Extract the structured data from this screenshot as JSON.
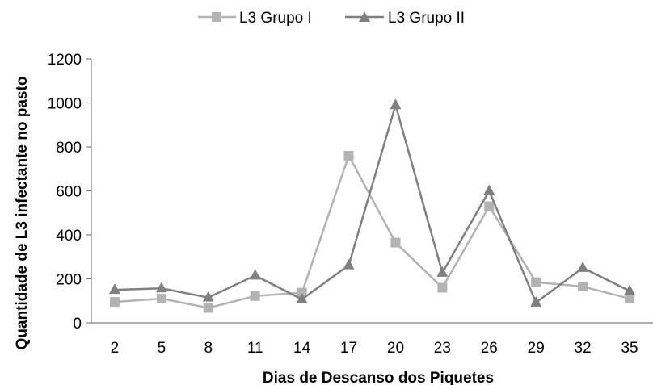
{
  "chart_data": {
    "type": "line",
    "title": "",
    "xlabel": "Dias de Descanso dos Piquetes",
    "ylabel": "Quantidade de L3 infectante no pasto",
    "categories": [
      "2",
      "5",
      "8",
      "11",
      "14",
      "17",
      "20",
      "23",
      "26",
      "29",
      "32",
      "35"
    ],
    "yticks": [
      0,
      200,
      400,
      600,
      800,
      1000,
      1200
    ],
    "ylim": [
      0,
      1200
    ],
    "grid": false,
    "legend_position": "top",
    "series": [
      {
        "name": "L3 Grupo I",
        "marker": "square",
        "color": "#b3b3b3",
        "values": [
          95,
          110,
          68,
          122,
          137,
          760,
          365,
          160,
          530,
          185,
          165,
          110
        ]
      },
      {
        "name": "L3 Grupo II",
        "marker": "triangle",
        "color": "#808080",
        "values": [
          150,
          157,
          115,
          215,
          107,
          262,
          990,
          228,
          600,
          92,
          250,
          145
        ]
      }
    ]
  }
}
